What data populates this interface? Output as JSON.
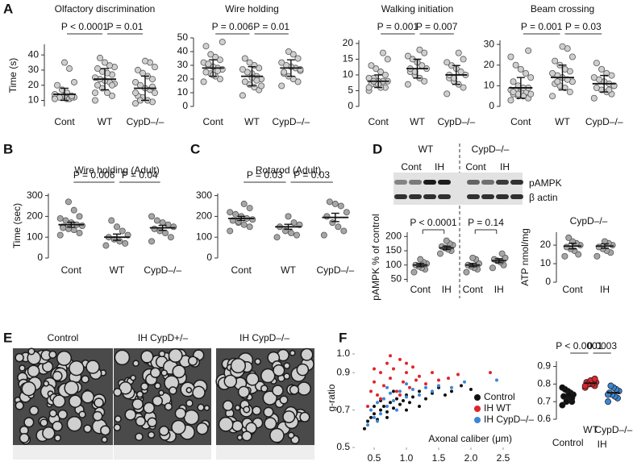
{
  "panel_labels": [
    "A",
    "B",
    "C",
    "D",
    "E",
    "F"
  ],
  "blot": {
    "groups": [
      "WT",
      "CypD–/–"
    ],
    "lanes": [
      "Cont",
      "IH",
      "Cont",
      "IH"
    ],
    "bands": [
      "pAMPK",
      "β actin"
    ]
  },
  "micrographs": [
    "Control",
    "IH CypD+/–",
    "IH CypD–/–"
  ],
  "chart_data": [
    {
      "type": "dot",
      "title": "Olfactory discrimination",
      "ylabel": "Time (s)",
      "categories": [
        "Cont",
        "WT",
        "CypD–/–"
      ],
      "color": "#cfcfcf",
      "values": [
        [
          12,
          12,
          11,
          12,
          13,
          12,
          11,
          13,
          12,
          14,
          12,
          15,
          17,
          20,
          22,
          31,
          35,
          12,
          11,
          13
        ],
        [
          10,
          13,
          15,
          18,
          20,
          21,
          22,
          23,
          24,
          25,
          27,
          28,
          29,
          31,
          32,
          33,
          35,
          38,
          15,
          20
        ],
        [
          8,
          9,
          10,
          12,
          13,
          15,
          17,
          18,
          20,
          22,
          24,
          26,
          28,
          30,
          32,
          35,
          36,
          10,
          15,
          19
        ]
      ],
      "means": [
        14,
        24,
        18
      ],
      "errors": [
        4,
        7,
        8
      ],
      "ylim": [
        6,
        47
      ],
      "yticks": [
        10,
        20,
        30,
        40
      ],
      "annotations": [
        "P < 0.0001",
        "P = 0.01"
      ]
    },
    {
      "type": "dot",
      "title": "Wire holding",
      "categories": [
        "Cont",
        "WT",
        "CypD–/–"
      ],
      "color": "#cfcfcf",
      "values": [
        [
          18,
          20,
          22,
          24,
          25,
          27,
          28,
          29,
          30,
          32,
          34,
          36,
          38,
          44,
          47,
          26,
          23,
          31
        ],
        [
          8,
          12,
          14,
          16,
          18,
          20,
          22,
          24,
          25,
          27,
          28,
          30,
          32,
          35,
          15,
          19,
          21
        ],
        [
          15,
          18,
          20,
          22,
          24,
          26,
          28,
          29,
          30,
          32,
          35,
          38,
          40,
          25,
          27
        ]
      ],
      "means": [
        28,
        22,
        28
      ],
      "errors": [
        6,
        7,
        6
      ],
      "ylim": [
        0,
        50
      ],
      "yticks": [
        0,
        10,
        20,
        30,
        40,
        50
      ],
      "annotations": [
        "P = 0.006",
        "P = 0.01"
      ]
    },
    {
      "type": "dot",
      "title": "Walking initiation",
      "categories": [
        "Cont",
        "WT",
        "CypD–/–"
      ],
      "color": "#cfcfcf",
      "values": [
        [
          5,
          6,
          6,
          7,
          7,
          8,
          8,
          8,
          9,
          9,
          10,
          11,
          12,
          13,
          15,
          17,
          7,
          8,
          6
        ],
        [
          7,
          8,
          9,
          10,
          11,
          12,
          13,
          14,
          15,
          16,
          17,
          18,
          11,
          12
        ],
        [
          4,
          6,
          7,
          8,
          9,
          10,
          11,
          12,
          13,
          14,
          15,
          17,
          9,
          10
        ]
      ],
      "means": [
        8,
        12,
        10
      ],
      "errors": [
        2,
        3,
        3
      ],
      "ylim": [
        0,
        21
      ],
      "yticks": [
        0,
        5,
        10,
        15,
        20
      ],
      "annotations": [
        "P = 0.001",
        "P = 0.007"
      ]
    },
    {
      "type": "dot",
      "title": "Beam crossing",
      "categories": [
        "Cont",
        "WT",
        "CypD–/–"
      ],
      "color": "#cfcfcf",
      "values": [
        [
          3,
          4,
          5,
          5,
          6,
          6,
          7,
          7,
          8,
          8,
          9,
          9,
          10,
          12,
          14,
          16,
          18,
          20,
          24,
          27,
          5,
          6,
          7
        ],
        [
          5,
          7,
          9,
          10,
          11,
          12,
          13,
          14,
          15,
          16,
          17,
          18,
          20,
          22,
          24,
          28,
          29,
          12
        ],
        [
          4,
          6,
          7,
          8,
          9,
          10,
          11,
          12,
          13,
          14,
          15,
          16,
          18,
          21,
          10,
          8
        ]
      ],
      "means": [
        9,
        14,
        11
      ],
      "errors": [
        5,
        6,
        4
      ],
      "ylim": [
        0,
        32
      ],
      "yticks": [
        0,
        10,
        20,
        30
      ],
      "annotations": [
        "P = 0.001",
        "P = 0.03"
      ]
    },
    {
      "type": "dot",
      "title": "Wire holding (Adult)",
      "ylabel": "Time (sec)",
      "categories": [
        "Cont",
        "WT",
        "CypD–/–"
      ],
      "color": "#a6a6a6",
      "values": [
        [
          110,
          120,
          135,
          140,
          150,
          155,
          160,
          170,
          180,
          190,
          200,
          230,
          270,
          145
        ],
        [
          60,
          70,
          80,
          90,
          100,
          110,
          130,
          150,
          180
        ],
        [
          80,
          100,
          120,
          130,
          140,
          150,
          160,
          170,
          180,
          200
        ]
      ],
      "means": [
        160,
        100,
        145
      ],
      "errors": [
        12,
        15,
        12
      ],
      "ylim": [
        0,
        310
      ],
      "yticks": [
        0,
        100,
        200,
        300
      ],
      "annotations": [
        "P = 0.006",
        "P = 0.04"
      ]
    },
    {
      "type": "dot",
      "title": "Rotarod (Adult)",
      "categories": [
        "Cont",
        "WT",
        "CypD–/–"
      ],
      "color": "#a6a6a6",
      "values": [
        [
          130,
          150,
          160,
          170,
          180,
          185,
          190,
          200,
          210,
          220,
          240,
          260,
          175
        ],
        [
          100,
          110,
          120,
          130,
          150,
          160,
          170,
          200
        ],
        [
          110,
          130,
          150,
          170,
          200,
          220,
          250,
          260,
          270
        ]
      ],
      "means": [
        190,
        150,
        195
      ],
      "errors": [
        10,
        12,
        20
      ],
      "ylim": [
        0,
        310
      ],
      "yticks": [
        0,
        100,
        200,
        300
      ],
      "annotations": [
        "P = 0.03",
        "P = 0.03"
      ]
    },
    {
      "type": "dot",
      "ylabel": "pAMPK % of control",
      "categories": [
        "Cont",
        "IH",
        "Cont",
        "IH"
      ],
      "color": "#a6a6a6",
      "values": [
        [
          75,
          85,
          90,
          95,
          100,
          105,
          110,
          120
        ],
        [
          140,
          150,
          155,
          160,
          165,
          170,
          175,
          185
        ],
        [
          75,
          85,
          90,
          95,
          100,
          105,
          120,
          125
        ],
        [
          90,
          100,
          110,
          115,
          120,
          125,
          140
        ]
      ],
      "means": [
        100,
        160,
        100,
        115
      ],
      "errors": [
        6,
        6,
        6,
        7
      ],
      "ylim": [
        40,
        215
      ],
      "yticks": [
        50,
        100,
        150,
        200
      ],
      "annotations": [
        "P < 0.0001",
        "P = 0.14"
      ]
    },
    {
      "type": "dot",
      "title": "CypD–/–",
      "ylabel": "ATP nmol/mg",
      "categories": [
        "Cont",
        "IH"
      ],
      "color": "#a6a6a6",
      "values": [
        [
          14,
          15,
          17,
          18,
          19,
          20,
          21,
          22,
          24
        ],
        [
          14,
          16,
          17,
          18,
          19,
          20,
          21,
          22
        ]
      ],
      "means": [
        19.5,
        19.5
      ],
      "errors": [
        1.5,
        1.2
      ],
      "ylim": [
        0,
        27
      ],
      "yticks": [
        0,
        10,
        20
      ]
    },
    {
      "type": "scatter",
      "xlabel": "Axonal caliber (μm)",
      "ylabel": "g-ratio",
      "legend": "lower right",
      "xlim": [
        0.2,
        2.7
      ],
      "ylim": [
        0.5,
        1.03
      ],
      "xticks": [
        0.5,
        {
          "value": 1.0,
          "label": "1.0"
        },
        1.5,
        {
          "value": 2.0,
          "label": "2.0"
        },
        2.5
      ],
      "yticks": [
        0.5,
        0.7,
        0.9,
        {
          "value": 1.0,
          "label": "1.0"
        }
      ],
      "series": [
        {
          "name": "Control",
          "color": "#111111",
          "x": [
            0.35,
            0.4,
            0.45,
            0.5,
            0.55,
            0.6,
            0.65,
            0.7,
            0.75,
            0.8,
            0.85,
            0.9,
            0.95,
            1.0,
            1.05,
            1.1,
            1.2,
            1.3,
            1.4,
            1.5,
            1.6,
            1.7,
            1.85,
            2.0,
            0.6,
            0.7,
            0.8,
            1.0,
            1.2,
            0.5
          ],
          "values": [
            0.6,
            0.64,
            0.66,
            0.68,
            0.65,
            0.7,
            0.72,
            0.69,
            0.74,
            0.71,
            0.76,
            0.73,
            0.75,
            0.78,
            0.74,
            0.77,
            0.8,
            0.76,
            0.79,
            0.82,
            0.78,
            0.8,
            0.83,
            0.81,
            0.75,
            0.66,
            0.8,
            0.7,
            0.72,
            0.72
          ]
        },
        {
          "name": "IH WT",
          "color": "#e0262b",
          "x": [
            0.4,
            0.45,
            0.5,
            0.55,
            0.6,
            0.65,
            0.7,
            0.75,
            0.8,
            0.85,
            0.9,
            0.95,
            1.0,
            1.05,
            1.1,
            1.15,
            1.2,
            1.3,
            1.4,
            1.5,
            1.65,
            1.8,
            2.3,
            0.6,
            0.75,
            0.9,
            1.0,
            0.5
          ],
          "values": [
            0.72,
            0.8,
            0.85,
            0.78,
            0.9,
            0.83,
            0.95,
            0.87,
            0.92,
            0.8,
            0.97,
            0.85,
            0.9,
            0.82,
            0.93,
            0.86,
            0.88,
            0.84,
            0.9,
            0.86,
            0.87,
            0.89,
            0.9,
            0.76,
            0.99,
            0.78,
            0.95,
            0.92
          ]
        },
        {
          "name": "IH CypD–/–",
          "color": "#3b86d6",
          "x": [
            0.4,
            0.45,
            0.5,
            0.55,
            0.6,
            0.65,
            0.7,
            0.75,
            0.8,
            0.9,
            1.0,
            1.1,
            1.2,
            1.3,
            1.4,
            1.5,
            1.7,
            1.9,
            2.4,
            0.55,
            0.7,
            0.85,
            1.0
          ],
          "values": [
            0.62,
            0.7,
            0.66,
            0.74,
            0.68,
            0.76,
            0.72,
            0.79,
            0.75,
            0.8,
            0.77,
            0.81,
            0.78,
            0.82,
            0.8,
            0.83,
            0.82,
            0.85,
            0.86,
            0.64,
            0.82,
            0.7,
            0.84
          ]
        }
      ]
    },
    {
      "type": "dot",
      "categories": [
        "Control",
        "WT",
        "CypD–/–"
      ],
      "group_label": "IH",
      "colors": [
        "#111111",
        "#e0262b",
        "#3b86d6"
      ],
      "values": [
        [
          0.68,
          0.7,
          0.71,
          0.72,
          0.73,
          0.74,
          0.75,
          0.76,
          0.77,
          0.78,
          0.72,
          0.74,
          0.7
        ],
        [
          0.78,
          0.79,
          0.8,
          0.8,
          0.81,
          0.81,
          0.82,
          0.82,
          0.8,
          0.79,
          0.83
        ],
        [
          0.7,
          0.72,
          0.73,
          0.74,
          0.75,
          0.76,
          0.77,
          0.78,
          0.79,
          0.74
        ]
      ],
      "means": [
        0.735,
        0.805,
        0.75
      ],
      "ylim": [
        0.6,
        0.93
      ],
      "yticks": [
        0.6,
        0.7,
        0.8,
        0.9
      ],
      "annotations": [
        "P < 0.0001",
        "0.0003"
      ]
    }
  ]
}
